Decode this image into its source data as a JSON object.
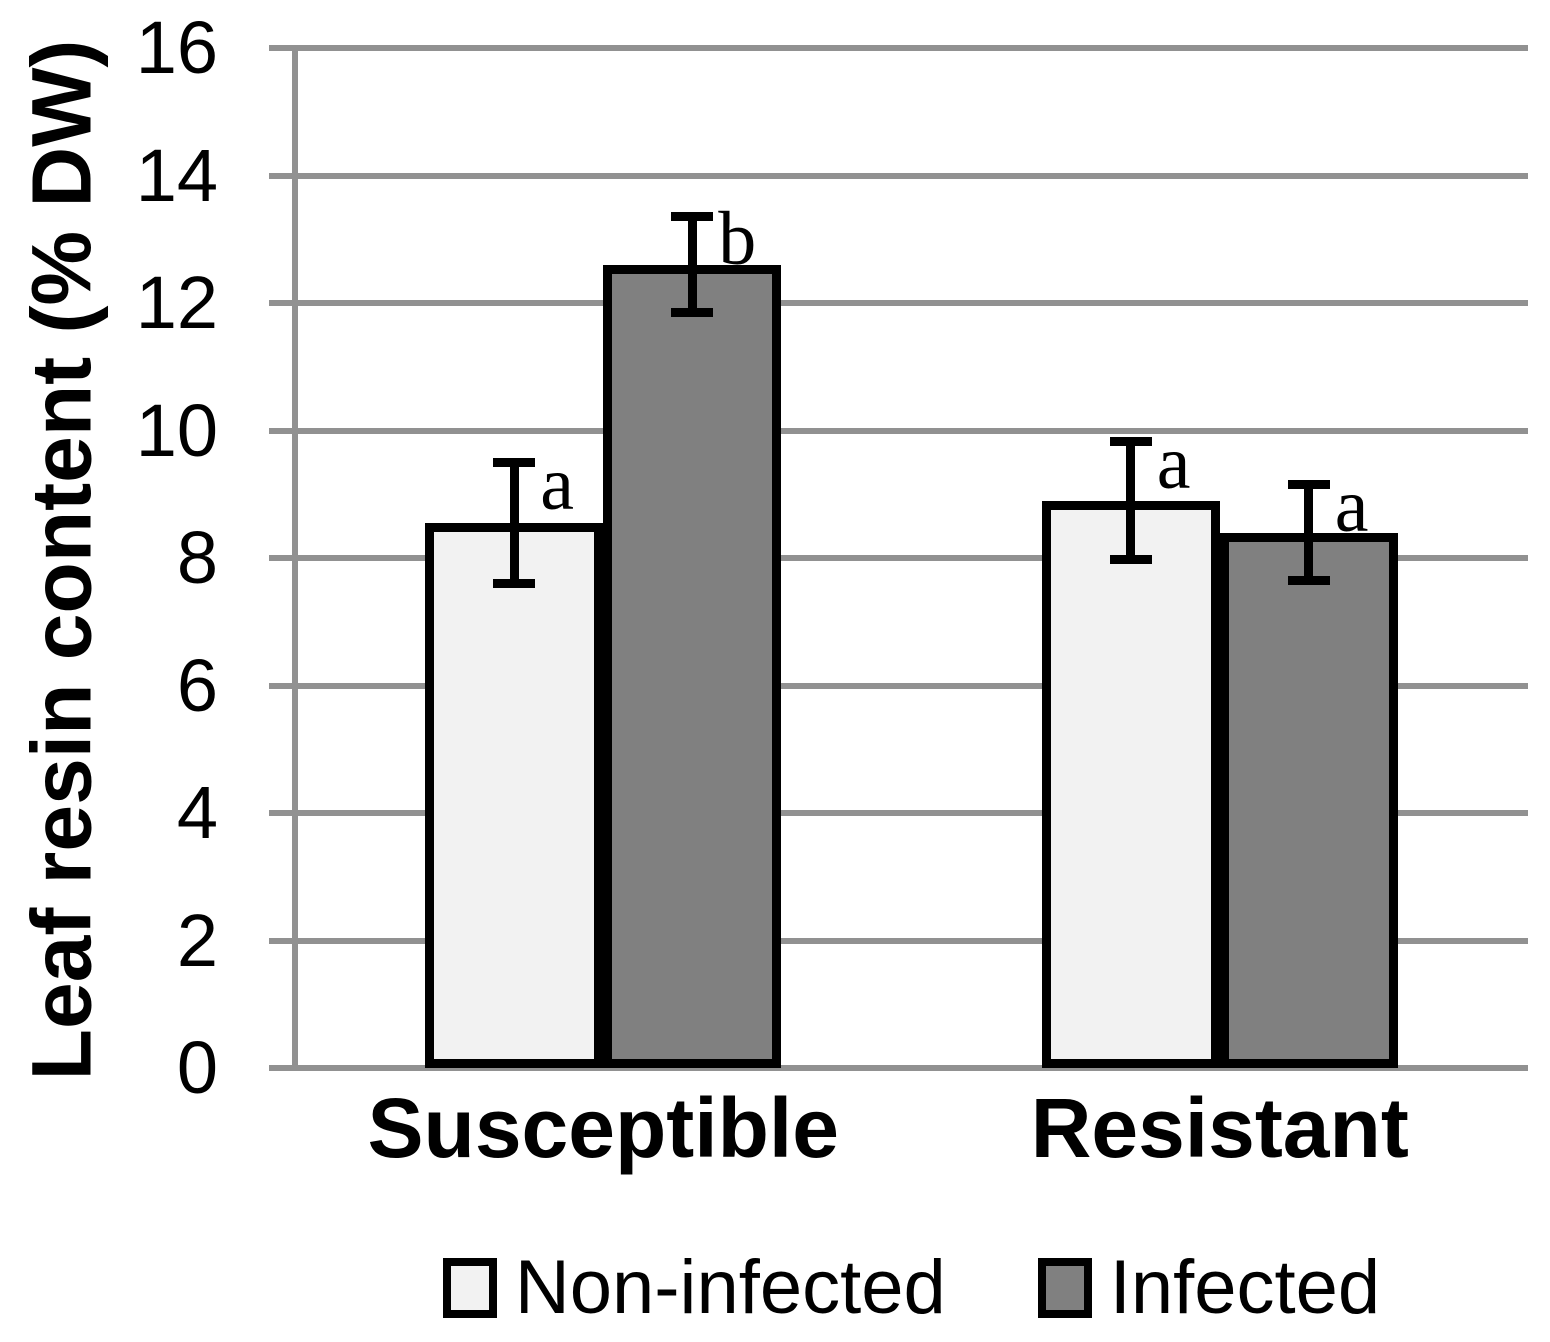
{
  "chart_data": {
    "type": "bar",
    "title": "",
    "ylabel": "Leaf resin content (% DW)",
    "xlabel": "",
    "categories": [
      "Susceptible",
      "Resistant"
    ],
    "series": [
      {
        "name": "Non-infected",
        "fill": "#f2f2f2",
        "values": [
          8.55,
          8.9
        ],
        "errors": [
          0.95,
          0.93
        ],
        "sig_letters": [
          "a",
          "a"
        ]
      },
      {
        "name": "Infected",
        "fill": "#808080",
        "values": [
          12.6,
          8.4
        ],
        "errors": [
          0.75,
          0.76
        ],
        "sig_letters": [
          "b",
          "a"
        ]
      }
    ],
    "ylim": [
      0,
      16
    ],
    "yticks": [
      0,
      2,
      4,
      6,
      8,
      10,
      12,
      14,
      16
    ],
    "grid": "horizontal",
    "gridline_color": "#919191",
    "bar_outline_color": "#000000",
    "error_bar_color": "#000000",
    "legend_position": "bottom",
    "legend_items": [
      "Non-infected",
      "Infected"
    ]
  }
}
